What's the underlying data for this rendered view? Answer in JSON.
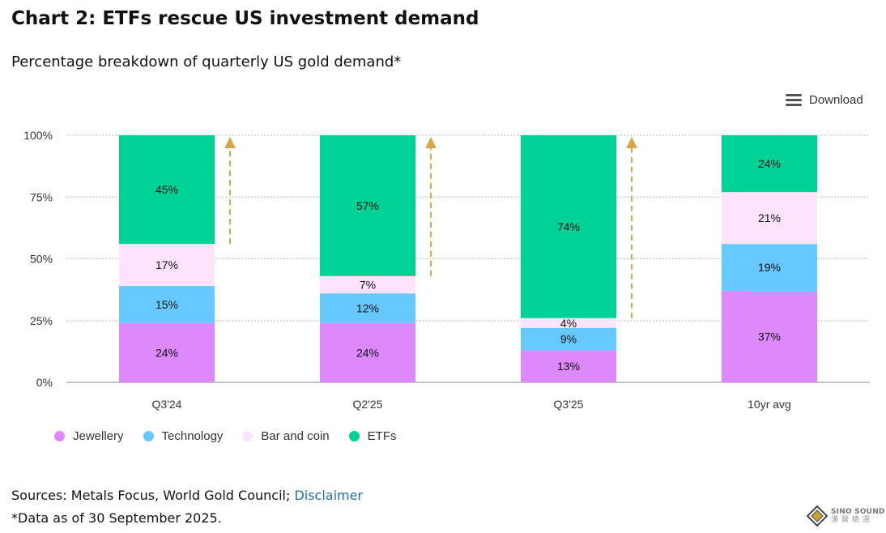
{
  "title": "Chart 2: ETFs rescue US investment demand",
  "subtitle": "Percentage breakdown of quarterly US gold demand*",
  "toolbar": {
    "download_label": "Download",
    "menu_icon": "hamburger-menu-icon"
  },
  "colors": {
    "jewellery": "#dd88fb",
    "technology": "#66c8ff",
    "bar_and_coin": "#fde3fc",
    "etfs": "#00d194",
    "arrow": "#d6a64a",
    "grid": "#bbbbbb",
    "axis": "#888888",
    "link": "#1f6fb2"
  },
  "chart_data": {
    "type": "bar",
    "stacked": true,
    "title": "Chart 2: ETFs rescue US investment demand",
    "subtitle": "Percentage breakdown of quarterly US gold demand*",
    "categories": [
      "Q3'24",
      "Q2'25",
      "Q3'25",
      "10yr avg"
    ],
    "series": [
      {
        "name": "Jewellery",
        "key": "jewellery",
        "values": [
          24,
          24,
          13,
          37
        ]
      },
      {
        "name": "Technology",
        "key": "technology",
        "values": [
          15,
          12,
          9,
          19
        ]
      },
      {
        "name": "Bar and coin",
        "key": "bar_and_coin",
        "values": [
          17,
          7,
          4,
          21
        ]
      },
      {
        "name": "ETFs",
        "key": "etfs",
        "values": [
          45,
          57,
          74,
          24
        ]
      }
    ],
    "ylim": [
      0,
      100
    ],
    "yticks": [
      "0%",
      "25%",
      "50%",
      "75%",
      "100%"
    ],
    "ytick_values": [
      0,
      25,
      50,
      75,
      100
    ],
    "grid": true,
    "legend_position": "bottom-left",
    "annotations": "upward dashed arrows beside the ETF segments of Q3'24, Q2'25 and Q3'25"
  },
  "legend": [
    {
      "label": "Jewellery",
      "key": "jewellery"
    },
    {
      "label": "Technology",
      "key": "technology"
    },
    {
      "label": "Bar and coin",
      "key": "bar_and_coin"
    },
    {
      "label": "ETFs",
      "key": "etfs"
    }
  ],
  "footer": {
    "sources_prefix": "Sources: Metals Focus, World Gold Council; ",
    "disclaimer_link": "Disclaimer",
    "note": "*Data as of 30 September 2025."
  },
  "watermark": {
    "text_en": "SINO SOUND",
    "text_zh": "漢聲精選"
  }
}
